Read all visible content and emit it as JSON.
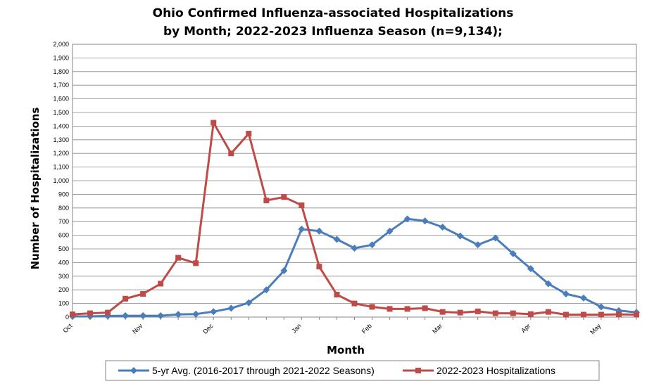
{
  "title_line1": "Ohio Confirmed Influenza-associated Hospitalizations",
  "title_line2": "by Month; 2022-2023 Influenza Season (n=9,134);",
  "chart_data": {
    "type": "line",
    "xlabel": "Month",
    "ylabel": "Number of Hospitalizations",
    "ylim": [
      0,
      2000
    ],
    "ytick_step": 100,
    "y_ticks": [
      "0",
      "100",
      "200",
      "300",
      "400",
      "500",
      "600",
      "700",
      "800",
      "900",
      "1,000",
      "1,100",
      "1,200",
      "1,300",
      "1,400",
      "1,500",
      "1,600",
      "1,700",
      "1,800",
      "1,900",
      "2,000"
    ],
    "x_tick_labels": [
      {
        "label": "Oct",
        "index": 0
      },
      {
        "label": "Nov",
        "index": 4
      },
      {
        "label": "Dec",
        "index": 8
      },
      {
        "label": "Jan",
        "index": 13
      },
      {
        "label": "Feb",
        "index": 17
      },
      {
        "label": "Mar",
        "index": 21
      },
      {
        "label": "Apr",
        "index": 26
      },
      {
        "label": "May",
        "index": 30
      }
    ],
    "grid": true,
    "legend_position": "bottom",
    "series": [
      {
        "name": "5-yr Avg. (2016-2017 through 2021-2022 Seasons)",
        "color": "#4a7ebb",
        "marker": "diamond",
        "values": [
          5,
          5,
          8,
          10,
          10,
          10,
          20,
          22,
          40,
          65,
          105,
          200,
          340,
          645,
          630,
          570,
          505,
          530,
          630,
          720,
          705,
          660,
          595,
          530,
          580,
          465,
          355,
          245,
          170,
          140,
          75,
          48,
          35
        ]
      },
      {
        "name": "2022-2023 Hospitalizations",
        "color": "#be4b48",
        "marker": "square",
        "values": [
          20,
          28,
          33,
          135,
          170,
          245,
          435,
          395,
          1425,
          1200,
          1345,
          855,
          880,
          820,
          370,
          165,
          100,
          75,
          60,
          60,
          65,
          38,
          33,
          42,
          28,
          28,
          22,
          38,
          18,
          18,
          18,
          20,
          18
        ]
      }
    ]
  }
}
